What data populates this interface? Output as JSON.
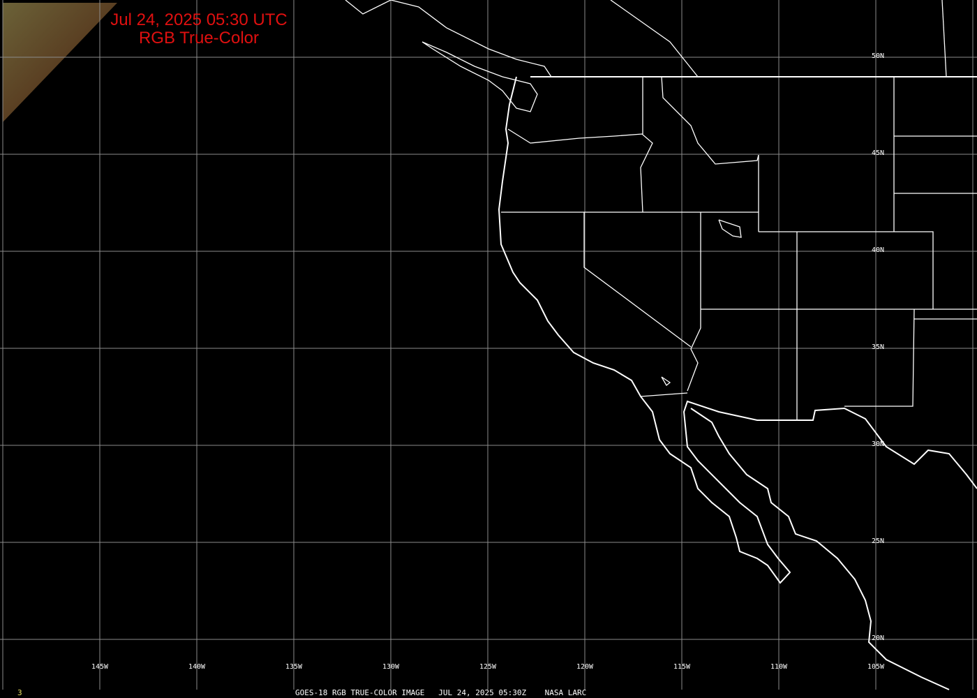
{
  "header": {
    "datetime": "Jul 24, 2025 05:30 UTC",
    "product": "RGB True-Color"
  },
  "footer": {
    "frame_number": "3",
    "caption": "GOES-18 RGB TRUE-COLOR IMAGE   JUL 24, 2025 05:30Z    NASA LARC"
  },
  "grid": {
    "longitude_labels": [
      "145W",
      "140W",
      "135W",
      "130W",
      "125W",
      "120W",
      "115W",
      "110W",
      "105W"
    ],
    "latitude_labels": [
      "50N",
      "45N",
      "40N",
      "35N",
      "30N",
      "25N",
      "20N"
    ]
  },
  "colors": {
    "title": "#e01010",
    "grid": "#8c8c8c",
    "boundaries": "#ffffff",
    "frame_number": "#e8e060"
  }
}
